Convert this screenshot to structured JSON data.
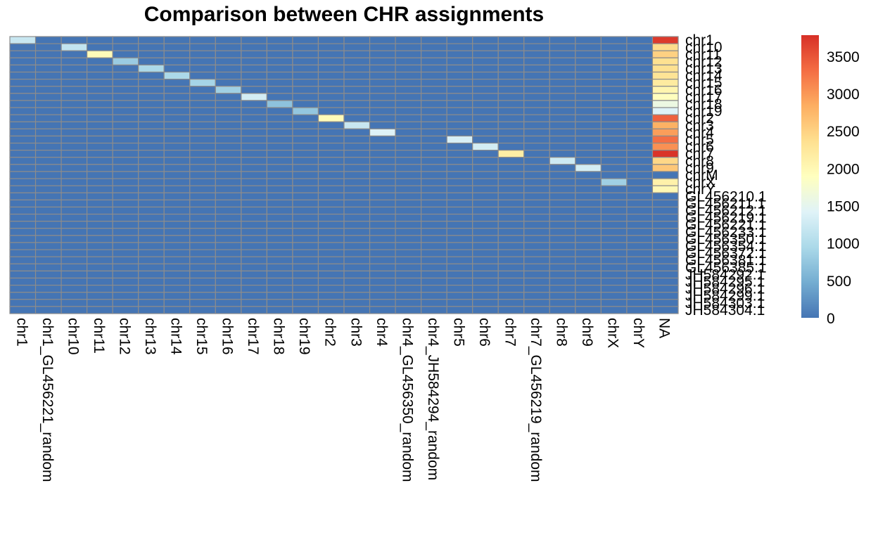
{
  "chart_data": {
    "type": "heatmap",
    "title": "Comparison between CHR assignments",
    "columns": [
      "chr1",
      "chr1_GL456221_random",
      "chr10",
      "chr11",
      "chr12",
      "chr13",
      "chr14",
      "chr15",
      "chr16",
      "chr17",
      "chr18",
      "chr19",
      "chr2",
      "chr3",
      "chr4",
      "chr4_GL456350_random",
      "chr4_JH584294_random",
      "chr5",
      "chr6",
      "chr7",
      "chr7_GL456219_random",
      "chr8",
      "chr9",
      "chrX",
      "chrY",
      "NA"
    ],
    "rows": [
      "chr1",
      "chr10",
      "chr11",
      "chr12",
      "chr13",
      "chr14",
      "chr15",
      "chr16",
      "chr17",
      "chr18",
      "chr19",
      "chr2",
      "chr3",
      "chr4",
      "chr5",
      "chr6",
      "chr7",
      "chr8",
      "chr9",
      "chrM",
      "chrX",
      "chrY",
      "GL456210.1",
      "GL456211.1",
      "GL456212.1",
      "GL456219.1",
      "GL456221.1",
      "GL456233.1",
      "GL456350.1",
      "GL456354.1",
      "GL456372.1",
      "GL456381.1",
      "GL456385.1",
      "JH584292.1",
      "JH584295.1",
      "JH584296.1",
      "JH584299.1",
      "JH584303.1",
      "JH584304.1"
    ],
    "cells": [
      {
        "row": "chr1",
        "col": "chr1",
        "value": 1200
      },
      {
        "row": "chr1",
        "col": "NA",
        "value": 3700
      },
      {
        "row": "chr10",
        "col": "chr10",
        "value": 1150
      },
      {
        "row": "chr10",
        "col": "NA",
        "value": 2400
      },
      {
        "row": "chr11",
        "col": "chr11",
        "value": 1950
      },
      {
        "row": "chr11",
        "col": "NA",
        "value": 2500
      },
      {
        "row": "chr12",
        "col": "chr12",
        "value": 800
      },
      {
        "row": "chr12",
        "col": "NA",
        "value": 2350
      },
      {
        "row": "chr13",
        "col": "chr13",
        "value": 950
      },
      {
        "row": "chr13",
        "col": "NA",
        "value": 2350
      },
      {
        "row": "chr14",
        "col": "chr14",
        "value": 950
      },
      {
        "row": "chr14",
        "col": "NA",
        "value": 2300
      },
      {
        "row": "chr15",
        "col": "chr15",
        "value": 900
      },
      {
        "row": "chr15",
        "col": "NA",
        "value": 2200
      },
      {
        "row": "chr16",
        "col": "chr16",
        "value": 850
      },
      {
        "row": "chr16",
        "col": "NA",
        "value": 2050
      },
      {
        "row": "chr17",
        "col": "chr17",
        "value": 1300
      },
      {
        "row": "chr17",
        "col": "NA",
        "value": 1900
      },
      {
        "row": "chr18",
        "col": "chr18",
        "value": 700
      },
      {
        "row": "chr18",
        "col": "NA",
        "value": 1600
      },
      {
        "row": "chr19",
        "col": "chr19",
        "value": 750
      },
      {
        "row": "chr19",
        "col": "NA",
        "value": 1400
      },
      {
        "row": "chr2",
        "col": "chr2",
        "value": 1950
      },
      {
        "row": "chr2",
        "col": "NA",
        "value": 3400
      },
      {
        "row": "chr3",
        "col": "chr3",
        "value": 1200
      },
      {
        "row": "chr3",
        "col": "NA",
        "value": 2800
      },
      {
        "row": "chr4",
        "col": "chr4",
        "value": 1400
      },
      {
        "row": "chr4",
        "col": "NA",
        "value": 2950
      },
      {
        "row": "chr5",
        "col": "chr5",
        "value": 1350
      },
      {
        "row": "chr5",
        "col": "NA",
        "value": 3300
      },
      {
        "row": "chr6",
        "col": "chr6",
        "value": 1300
      },
      {
        "row": "chr6",
        "col": "NA",
        "value": 3050
      },
      {
        "row": "chr7",
        "col": "chr7",
        "value": 2150
      },
      {
        "row": "chr7",
        "col": "NA",
        "value": 3750
      },
      {
        "row": "chr8",
        "col": "chr8",
        "value": 1250
      },
      {
        "row": "chr8",
        "col": "NA",
        "value": 2450
      },
      {
        "row": "chr9",
        "col": "chr9",
        "value": 1300
      },
      {
        "row": "chr9",
        "col": "NA",
        "value": 2600
      },
      {
        "row": "chrX",
        "col": "chrX",
        "value": 850
      },
      {
        "row": "chrX",
        "col": "NA",
        "value": 2100
      },
      {
        "row": "chrY",
        "col": "NA",
        "value": 2000
      }
    ],
    "legend": {
      "min": 0,
      "max": 3780,
      "ticks": [
        0,
        500,
        1000,
        1500,
        2000,
        2500,
        3000,
        3500
      ],
      "placement": "right"
    },
    "colors": {
      "low": "#4575b4",
      "scale": [
        "#4575b4",
        "#74add1",
        "#abd9e9",
        "#e0f3f8",
        "#ffffbf",
        "#fee090",
        "#fdae61",
        "#f46d43",
        "#d73027"
      ],
      "grid": "#8c8c8c"
    }
  }
}
